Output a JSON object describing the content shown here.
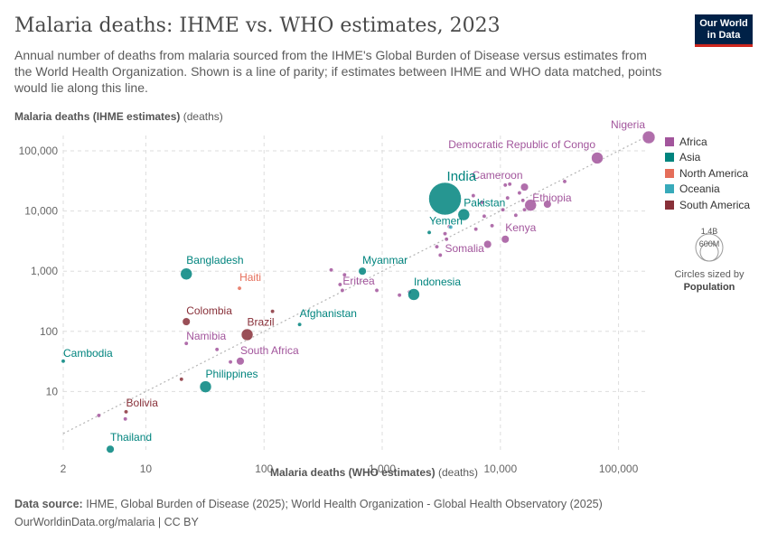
{
  "header": {
    "title": "Malaria deaths: IHME vs. WHO estimates, 2023",
    "subtitle": "Annual number of deaths from malaria sourced from the IHME's Global Burden of Disease versus estimates from the World Health Organization. Shown is a line of parity; if estimates between IHME and WHO data matched, points would lie along this line.",
    "logo_line1": "Our World",
    "logo_line2": "in Data",
    "colors": {
      "brand_bg": "#002147",
      "brand_accent": "#ce261e"
    }
  },
  "legend": {
    "items": [
      {
        "label": "Africa",
        "color": "#a2559c"
      },
      {
        "label": "Asia",
        "color": "#00847e"
      },
      {
        "label": "North America",
        "color": "#e56e5a"
      },
      {
        "label": "Oceania",
        "color": "#38aaba"
      },
      {
        "label": "South America",
        "color": "#883039"
      }
    ],
    "size_legend": {
      "large_label": "1.4B",
      "small_label": "600M",
      "caption_prefix": "Circles sized by",
      "caption_strong": "Population"
    }
  },
  "footer": {
    "source_label": "Data source:",
    "source_text": "IHME, Global Burden of Disease (2025); World Health Organization - Global Health Observatory (2025)",
    "url_text": "OurWorldinData.org/malaria | CC BY"
  },
  "chart_data": {
    "type": "scatter",
    "title": "Malaria deaths: IHME vs. WHO estimates, 2023",
    "xlabel": "Malaria deaths (WHO estimates)",
    "xlabel_unit": "(deaths)",
    "ylabel": "Malaria deaths (IHME estimates)",
    "ylabel_unit": "(deaths)",
    "xscale": "log",
    "yscale": "log",
    "xlim": [
      2,
      180000
    ],
    "ylim": [
      1,
      180000
    ],
    "x_ticks": [
      {
        "value": 2,
        "label": "2"
      },
      {
        "value": 10,
        "label": "10"
      },
      {
        "value": 100,
        "label": "100"
      },
      {
        "value": 1000,
        "label": "1,000"
      },
      {
        "value": 10000,
        "label": "10,000"
      },
      {
        "value": 100000,
        "label": "100,000"
      }
    ],
    "y_ticks": [
      {
        "value": 10,
        "label": "10"
      },
      {
        "value": 100,
        "label": "100"
      },
      {
        "value": 1000,
        "label": "1,000"
      },
      {
        "value": 10000,
        "label": "10,000"
      },
      {
        "value": 100000,
        "label": "100,000"
      }
    ],
    "grid": true,
    "parity_line": true,
    "legend_position": "right",
    "series": [
      {
        "name": "Africa",
        "color": "#a2559c",
        "points": [
          {
            "label": "Nigeria",
            "x": 180000,
            "y": 210000,
            "size": "large"
          },
          {
            "label": "Democratic Republic of Congo",
            "x": 66000,
            "y": 76000,
            "size": "medium"
          },
          {
            "label": "Cameroon",
            "x": 16000,
            "y": 25000,
            "size": "small"
          },
          {
            "label": "Ethiopia",
            "x": 18000,
            "y": 12500,
            "size": "medium"
          },
          {
            "label": "",
            "x": 25000,
            "y": 13000,
            "size": "small"
          },
          {
            "label": "",
            "x": 35000,
            "y": 31000,
            "size": "tiny"
          },
          {
            "label": "",
            "x": 12000,
            "y": 28000,
            "size": "tiny"
          },
          {
            "label": "",
            "x": 11000,
            "y": 27000,
            "size": "tiny"
          },
          {
            "label": "",
            "x": 14500,
            "y": 20000,
            "size": "tiny"
          },
          {
            "label": "",
            "x": 11500,
            "y": 16500,
            "size": "tiny"
          },
          {
            "label": "",
            "x": 15500,
            "y": 15000,
            "size": "tiny"
          },
          {
            "label": "",
            "x": 16000,
            "y": 10500,
            "size": "tiny"
          },
          {
            "label": "",
            "x": 13500,
            "y": 8500,
            "size": "tiny"
          },
          {
            "label": "",
            "x": 10500,
            "y": 10500,
            "size": "tiny"
          },
          {
            "label": "",
            "x": 7000,
            "y": 14000,
            "size": "tiny"
          },
          {
            "label": "",
            "x": 5900,
            "y": 18000,
            "size": "tiny"
          },
          {
            "label": "",
            "x": 7300,
            "y": 8200,
            "size": "tiny"
          },
          {
            "label": "",
            "x": 8500,
            "y": 5700,
            "size": "tiny"
          },
          {
            "label": "",
            "x": 6200,
            "y": 5000,
            "size": "tiny"
          },
          {
            "label": "",
            "x": 3700,
            "y": 5500,
            "size": "tiny"
          },
          {
            "label": "",
            "x": 3400,
            "y": 4200,
            "size": "tiny"
          },
          {
            "label": "",
            "x": 3500,
            "y": 3400,
            "size": "tiny"
          },
          {
            "label": "Kenya",
            "x": 11000,
            "y": 3400,
            "size": "small"
          },
          {
            "label": "",
            "x": 7800,
            "y": 2800,
            "size": "small"
          },
          {
            "label": "Somalia",
            "x": 2900,
            "y": 2550,
            "size": "tiny"
          },
          {
            "label": "",
            "x": 3100,
            "y": 1850,
            "size": "tiny"
          },
          {
            "label": "",
            "x": 370,
            "y": 1050,
            "size": "tiny"
          },
          {
            "label": "",
            "x": 480,
            "y": 870,
            "size": "tiny"
          },
          {
            "label": "Eritrea",
            "x": 440,
            "y": 600,
            "size": "tiny"
          },
          {
            "label": "",
            "x": 460,
            "y": 480,
            "size": "tiny"
          },
          {
            "label": "",
            "x": 900,
            "y": 480,
            "size": "tiny"
          },
          {
            "label": "",
            "x": 1700,
            "y": 450,
            "size": "tiny"
          },
          {
            "label": "",
            "x": 1400,
            "y": 400,
            "size": "tiny"
          },
          {
            "label": "Namibia",
            "x": 22,
            "y": 63,
            "size": "tiny"
          },
          {
            "label": "",
            "x": 40,
            "y": 50,
            "size": "tiny"
          },
          {
            "label": "",
            "x": 52,
            "y": 31,
            "size": "tiny"
          },
          {
            "label": "South Africa",
            "x": 63,
            "y": 32,
            "size": "small"
          },
          {
            "label": "",
            "x": 4,
            "y": 4,
            "size": "tiny"
          },
          {
            "label": "",
            "x": 6.7,
            "y": 3.5,
            "size": "tiny"
          }
        ]
      },
      {
        "name": "Asia",
        "color": "#00847e",
        "points": [
          {
            "label": "India",
            "x": 3400,
            "y": 16000,
            "size": "xlarge"
          },
          {
            "label": "Pakistan",
            "x": 4900,
            "y": 8700,
            "size": "medium"
          },
          {
            "label": "Yemen",
            "x": 2500,
            "y": 4400,
            "size": "tiny"
          },
          {
            "label": "Bangladesh",
            "x": 22,
            "y": 900,
            "size": "medium"
          },
          {
            "label": "Myanmar",
            "x": 680,
            "y": 1000,
            "size": "small"
          },
          {
            "label": "Indonesia",
            "x": 1850,
            "y": 410,
            "size": "medium"
          },
          {
            "label": "Afghanistan",
            "x": 200,
            "y": 130,
            "size": "tiny"
          },
          {
            "label": "Cambodia",
            "x": 2,
            "y": 32,
            "size": "tiny"
          },
          {
            "label": "Philippines",
            "x": 32,
            "y": 12,
            "size": "medium"
          },
          {
            "label": "Thailand",
            "x": 5,
            "y": 1.1,
            "size": "small"
          }
        ]
      },
      {
        "name": "North America",
        "color": "#e56e5a",
        "points": [
          {
            "label": "Haiti",
            "x": 62,
            "y": 520,
            "size": "tiny"
          }
        ]
      },
      {
        "name": "Oceania",
        "color": "#38aaba",
        "points": [
          {
            "label": "",
            "x": 3800,
            "y": 5400,
            "size": "tiny"
          }
        ]
      },
      {
        "name": "South America",
        "color": "#883039",
        "points": [
          {
            "label": "Colombia",
            "x": 22,
            "y": 145,
            "size": "small"
          },
          {
            "label": "Brazil",
            "x": 72,
            "y": 88,
            "size": "medium"
          },
          {
            "label": "",
            "x": 118,
            "y": 215,
            "size": "tiny"
          },
          {
            "label": "",
            "x": 20,
            "y": 16,
            "size": "tiny"
          },
          {
            "label": "Bolivia",
            "x": 6.8,
            "y": 4.6,
            "size": "tiny"
          }
        ]
      }
    ]
  }
}
